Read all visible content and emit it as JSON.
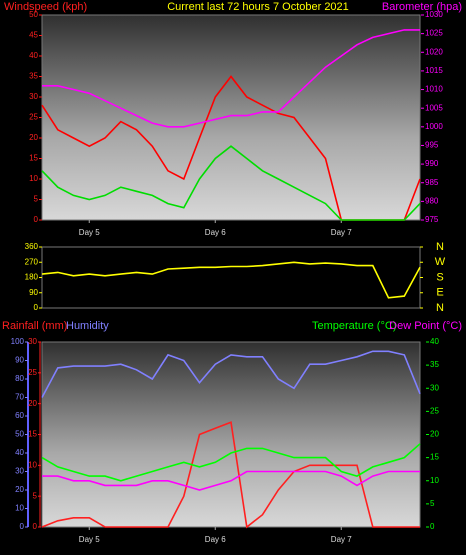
{
  "chart_data": [
    {
      "type": "line",
      "title": "Current last 72 hours 7 October 2021",
      "ylabel": "Windspeed (kph)",
      "y2label": "Barometer (hpa)",
      "x": [
        0,
        3,
        6,
        9,
        12,
        15,
        18,
        21,
        24,
        27,
        30,
        33,
        36,
        39,
        42,
        45,
        48,
        51,
        54,
        57,
        60,
        63,
        66,
        69,
        72
      ],
      "xlim": [
        0,
        72
      ],
      "xticks": [
        {
          "value": 9,
          "label": "Day 5"
        },
        {
          "value": 33,
          "label": "Day 6"
        },
        {
          "value": 57,
          "label": "Day 7"
        }
      ],
      "ylim": [
        0,
        50
      ],
      "yticks": [
        0,
        5,
        10,
        15,
        20,
        25,
        30,
        35,
        40,
        45,
        50
      ],
      "y2lim": [
        975,
        1030
      ],
      "y2ticks": [
        975,
        980,
        985,
        990,
        995,
        1000,
        1005,
        1010,
        1015,
        1020,
        1025,
        1030
      ],
      "series": [
        {
          "color": "#ff0000",
          "axis": "y",
          "values": [
            28,
            22,
            20,
            18,
            20,
            24,
            22,
            18,
            12,
            10,
            20,
            30,
            35,
            30,
            28,
            26,
            25,
            20,
            15,
            0,
            0,
            0,
            0,
            0,
            10
          ]
        },
        {
          "color": "#00dd00",
          "axis": "y",
          "values": [
            12,
            8,
            6,
            5,
            6,
            8,
            7,
            6,
            4,
            3,
            10,
            15,
            18,
            15,
            12,
            10,
            8,
            6,
            4,
            0,
            0,
            0,
            0,
            0,
            4
          ]
        },
        {
          "color": "#ff00ff",
          "axis": "y2",
          "values": [
            1011,
            1011,
            1010,
            1009,
            1007,
            1005,
            1003,
            1001,
            1000,
            1000,
            1001,
            1002,
            1003,
            1003,
            1004,
            1004,
            1008,
            1012,
            1016,
            1019,
            1022,
            1024,
            1025,
            1026,
            1026
          ]
        }
      ]
    },
    {
      "type": "line",
      "x": [
        0,
        3,
        6,
        9,
        12,
        15,
        18,
        21,
        24,
        27,
        30,
        33,
        36,
        39,
        42,
        45,
        48,
        51,
        54,
        57,
        60,
        63,
        66,
        69,
        72
      ],
      "xlim": [
        0,
        72
      ],
      "ylim": [
        0,
        360
      ],
      "yticks": [
        0,
        90,
        180,
        270,
        360
      ],
      "y2lim": [
        0,
        360
      ],
      "y2ticks": [
        {
          "value": 360,
          "label": "N"
        },
        {
          "value": 270,
          "label": "W"
        },
        {
          "value": 180,
          "label": "S"
        },
        {
          "value": 90,
          "label": "E"
        },
        {
          "value": 0,
          "label": "N"
        }
      ],
      "series": [
        {
          "color": "#ffff00",
          "axis": "y",
          "values": [
            200,
            210,
            190,
            200,
            190,
            200,
            210,
            200,
            230,
            235,
            240,
            240,
            245,
            245,
            250,
            260,
            270,
            260,
            265,
            260,
            250,
            250,
            60,
            70,
            240
          ]
        }
      ]
    },
    {
      "type": "line",
      "x": [
        0,
        3,
        6,
        9,
        12,
        15,
        18,
        21,
        24,
        27,
        30,
        33,
        36,
        39,
        42,
        45,
        48,
        51,
        54,
        57,
        60,
        63,
        66,
        69,
        72
      ],
      "xlim": [
        0,
        72
      ],
      "xticks": [
        {
          "value": 9,
          "label": "Day 5"
        },
        {
          "value": 33,
          "label": "Day 6"
        },
        {
          "value": 57,
          "label": "Day 7"
        }
      ],
      "ylim": [
        0,
        30
      ],
      "yticks": [
        0,
        5,
        10,
        15,
        20,
        25,
        30
      ],
      "y2lim": [
        0,
        40
      ],
      "y2ticks": [
        0,
        5,
        10,
        15,
        20,
        25,
        30,
        35,
        40
      ],
      "y3lim": [
        0,
        100
      ],
      "y3ticks": [
        0,
        10,
        20,
        30,
        40,
        50,
        60,
        70,
        80,
        90,
        100
      ],
      "series": [
        {
          "name": "Rainfall (mm)",
          "color": "#ff2020",
          "axis": "y",
          "values": [
            0,
            1,
            1.5,
            1.5,
            0,
            0,
            0,
            0,
            0,
            5,
            15,
            16,
            17,
            0,
            2,
            6,
            9,
            10,
            10,
            10,
            10,
            0,
            0,
            0,
            0
          ]
        },
        {
          "name": "Humidity",
          "color": "#8080ff",
          "axis": "y3",
          "values": [
            70,
            86,
            87,
            87,
            87,
            88,
            85,
            80,
            93,
            90,
            78,
            88,
            93,
            92,
            92,
            80,
            75,
            88,
            88,
            90,
            92,
            95,
            95,
            93,
            72
          ]
        },
        {
          "name": "Temperature (°C)",
          "color": "#00ff00",
          "axis": "y2",
          "values": [
            15,
            13,
            12,
            11,
            11,
            10,
            11,
            12,
            13,
            14,
            13,
            14,
            16,
            17,
            17,
            16,
            15,
            15,
            15,
            12,
            11,
            13,
            14,
            15,
            18
          ]
        },
        {
          "name": "Dew Point (°C)",
          "color": "#ff00ff",
          "axis": "y2",
          "values": [
            11,
            11,
            10,
            10,
            9,
            9,
            9,
            10,
            10,
            9,
            8,
            9,
            10,
            12,
            12,
            12,
            12,
            12,
            12,
            11,
            9,
            11,
            12,
            12,
            12
          ]
        }
      ]
    }
  ]
}
